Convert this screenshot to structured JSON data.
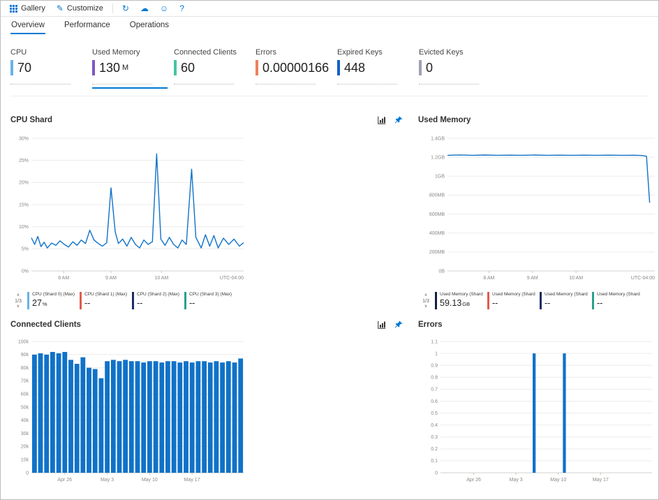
{
  "toolbar": {
    "gallery_label": "Gallery",
    "customize_label": "Customize"
  },
  "icons": {
    "pencil": "✎",
    "refresh": "↻",
    "cloud": "☁",
    "smiley": "☺",
    "help": "?",
    "pager_up": "∧",
    "pager_down": "∨"
  },
  "tabs": [
    {
      "label": "Overview",
      "active": true
    },
    {
      "label": "Performance",
      "active": false
    },
    {
      "label": "Operations",
      "active": false
    }
  ],
  "tiles": [
    {
      "label": "CPU",
      "value": "70",
      "unit": "",
      "color": "#69b2e8",
      "selected": false
    },
    {
      "label": "Used Memory",
      "value": "130",
      "unit": "M",
      "color": "#7e57c2",
      "selected": true
    },
    {
      "label": "Connected Clients",
      "value": "60",
      "unit": "",
      "color": "#45c4a3",
      "selected": false
    },
    {
      "label": "Errors",
      "value": "0.00000166",
      "unit": "",
      "color": "#ee7f5c",
      "selected": false
    },
    {
      "label": "Expired Keys",
      "value": "448",
      "unit": "",
      "color": "#1261c4",
      "selected": false
    },
    {
      "label": "Evicted Keys",
      "value": "0",
      "unit": "",
      "color": "#9fa0b5",
      "selected": false
    }
  ],
  "chart_data": [
    {
      "id": "cpu-shard-chart",
      "type": "line",
      "title": "CPU Shard",
      "color": "#1072c8",
      "ylim": [
        0,
        30
      ],
      "y_ticks": [
        0,
        5,
        10,
        15,
        20,
        25,
        30
      ],
      "y_tick_labels": [
        "0%",
        "5%",
        "10%",
        "15%",
        "20%",
        "25%",
        "30%"
      ],
      "x_ticks": [
        {
          "pos": 0.152,
          "label": "8 AM"
        },
        {
          "pos": 0.375,
          "label": "9 AM"
        },
        {
          "pos": 0.613,
          "label": "10 AM"
        }
      ],
      "x_end_label": "UTC-04:00",
      "pagination": "1/3",
      "legend": [
        {
          "label": "CPU (Shard 0) (Max)",
          "value": "27",
          "unit": "%",
          "color": "#69b2e8"
        },
        {
          "label": "CPU (Shard 1) (Max)",
          "value": "--",
          "unit": "",
          "color": "#e05c4f"
        },
        {
          "label": "CPU (Shard 2) (Max)",
          "value": "--",
          "unit": "",
          "color": "#1f2a63"
        },
        {
          "label": "CPU (Shard 3) (Max)",
          "value": "--",
          "unit": "",
          "color": "#2aa08c"
        }
      ],
      "points": [
        [
          0.0,
          7.5
        ],
        [
          0.015,
          6.0
        ],
        [
          0.03,
          7.8
        ],
        [
          0.045,
          5.5
        ],
        [
          0.06,
          6.5
        ],
        [
          0.075,
          5.2
        ],
        [
          0.095,
          6.3
        ],
        [
          0.115,
          5.8
        ],
        [
          0.135,
          6.8
        ],
        [
          0.155,
          6.0
        ],
        [
          0.175,
          5.4
        ],
        [
          0.195,
          6.6
        ],
        [
          0.215,
          5.8
        ],
        [
          0.235,
          7.0
        ],
        [
          0.255,
          6.2
        ],
        [
          0.275,
          9.2
        ],
        [
          0.295,
          7.0
        ],
        [
          0.315,
          6.2
        ],
        [
          0.335,
          5.6
        ],
        [
          0.355,
          6.4
        ],
        [
          0.375,
          18.8
        ],
        [
          0.395,
          8.8
        ],
        [
          0.41,
          6.2
        ],
        [
          0.43,
          7.2
        ],
        [
          0.45,
          5.6
        ],
        [
          0.47,
          7.6
        ],
        [
          0.49,
          6.0
        ],
        [
          0.51,
          5.2
        ],
        [
          0.53,
          7.0
        ],
        [
          0.55,
          6.0
        ],
        [
          0.57,
          6.6
        ],
        [
          0.59,
          26.5
        ],
        [
          0.61,
          7.2
        ],
        [
          0.63,
          5.8
        ],
        [
          0.65,
          7.6
        ],
        [
          0.67,
          6.0
        ],
        [
          0.69,
          5.2
        ],
        [
          0.71,
          7.0
        ],
        [
          0.73,
          6.0
        ],
        [
          0.755,
          23.0
        ],
        [
          0.775,
          7.6
        ],
        [
          0.8,
          5.2
        ],
        [
          0.82,
          8.2
        ],
        [
          0.84,
          5.6
        ],
        [
          0.86,
          8.0
        ],
        [
          0.88,
          5.2
        ],
        [
          0.905,
          7.4
        ],
        [
          0.93,
          6.0
        ],
        [
          0.955,
          7.2
        ],
        [
          0.98,
          5.6
        ],
        [
          1.0,
          6.4
        ]
      ]
    },
    {
      "id": "used-memory-chart",
      "type": "line",
      "title": "Used Memory",
      "color": "#1072c8",
      "ylim": [
        0,
        1.4
      ],
      "y_ticks": [
        0,
        0.2,
        0.4,
        0.6,
        0.8,
        1.0,
        1.2,
        1.4
      ],
      "y_tick_labels": [
        "0B",
        "200MB",
        "400MB",
        "600MB",
        "800MB",
        "1GB",
        "1.2GB",
        "1.4GB"
      ],
      "x_ticks": [
        {
          "pos": 0.2,
          "label": "8 AM"
        },
        {
          "pos": 0.41,
          "label": "9 AM"
        },
        {
          "pos": 0.62,
          "label": "10 AM"
        }
      ],
      "x_end_label": "UTC-04:00",
      "pagination": "1/3",
      "legend": [
        {
          "label": "Used Memory (Shard 0...",
          "value": "59.13",
          "unit": "GB",
          "color": "#131f43"
        },
        {
          "label": "Used Memory (Shard 1...",
          "value": "--",
          "unit": "",
          "color": "#e05c4f"
        },
        {
          "label": "Used Memory (Shard 2...",
          "value": "--",
          "unit": "",
          "color": "#1f2a63"
        },
        {
          "label": "Used Memory (Shard 3...",
          "value": "--",
          "unit": "",
          "color": "#2aa08c"
        }
      ],
      "points": [
        [
          0.0,
          1.22
        ],
        [
          0.06,
          1.224
        ],
        [
          0.12,
          1.22
        ],
        [
          0.18,
          1.223
        ],
        [
          0.24,
          1.22
        ],
        [
          0.3,
          1.222
        ],
        [
          0.36,
          1.22
        ],
        [
          0.42,
          1.223
        ],
        [
          0.48,
          1.22
        ],
        [
          0.54,
          1.222
        ],
        [
          0.6,
          1.22
        ],
        [
          0.66,
          1.222
        ],
        [
          0.72,
          1.22
        ],
        [
          0.78,
          1.222
        ],
        [
          0.84,
          1.22
        ],
        [
          0.9,
          1.221
        ],
        [
          0.94,
          1.218
        ],
        [
          0.96,
          1.21
        ],
        [
          0.975,
          0.72
        ]
      ]
    },
    {
      "id": "connected-clients-chart",
      "type": "bar",
      "title": "Connected Clients",
      "color": "#1072c8",
      "bar_ratio": 0.78,
      "ylim": [
        0,
        100
      ],
      "y_ticks": [
        0,
        10,
        20,
        30,
        40,
        50,
        60,
        70,
        80,
        90,
        100
      ],
      "y_tick_labels": [
        "0",
        "10k",
        "20k",
        "30k",
        "40k",
        "50k",
        "60k",
        "70k",
        "80k",
        "90k",
        "100k"
      ],
      "x_ticks": [
        {
          "pos": 0.157,
          "label": "Apr 26"
        },
        {
          "pos": 0.357,
          "label": "May 3"
        },
        {
          "pos": 0.557,
          "label": "May 10"
        },
        {
          "pos": 0.757,
          "label": "May 17"
        }
      ],
      "values": [
        90,
        91,
        90,
        92,
        91,
        92,
        86,
        83,
        88,
        80,
        79,
        72,
        85,
        86,
        85,
        86,
        85,
        85,
        84,
        85,
        85,
        84,
        85,
        85,
        84,
        85,
        84,
        85,
        85,
        84,
        85,
        84,
        85,
        84,
        87
      ]
    },
    {
      "id": "errors-chart",
      "type": "bar",
      "title": "Errors",
      "color": "#1072c8",
      "bar_ratio": 0.5,
      "ylim": [
        0,
        1.1
      ],
      "y_ticks": [
        0,
        0.1,
        0.2,
        0.3,
        0.4,
        0.5,
        0.6,
        0.7,
        0.8,
        0.9,
        1.0,
        1.1
      ],
      "y_tick_labels": [
        "0",
        "0.1",
        "0.2",
        "0.3",
        "0.4",
        "0.5",
        "0.6",
        "0.7",
        "0.8",
        "0.9",
        "1",
        "1.1"
      ],
      "x_ticks": [
        {
          "pos": 0.157,
          "label": "Apr 26"
        },
        {
          "pos": 0.357,
          "label": "May 3"
        },
        {
          "pos": 0.557,
          "label": "May 10"
        },
        {
          "pos": 0.757,
          "label": "May 17"
        }
      ],
      "values": [
        null,
        null,
        null,
        null,
        null,
        null,
        null,
        null,
        null,
        null,
        null,
        null,
        null,
        null,
        null,
        1,
        null,
        null,
        null,
        null,
        1,
        null,
        null,
        null,
        null,
        null,
        null,
        null,
        null,
        null,
        null,
        null,
        null,
        null,
        null
      ]
    }
  ]
}
